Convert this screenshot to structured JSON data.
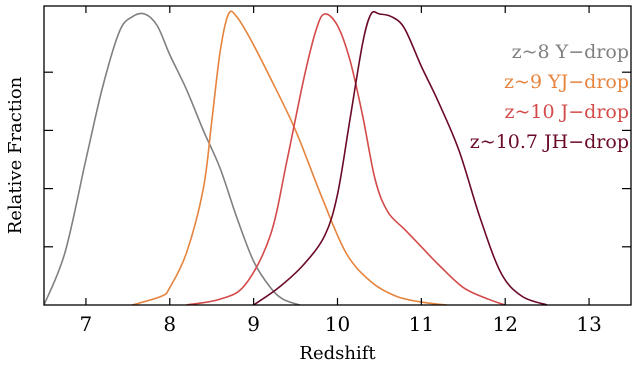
{
  "chart_data": {
    "type": "line",
    "xlabel": "Redshift",
    "ylabel": "Relative Fraction",
    "xlim": [
      6.5,
      13.5
    ],
    "ylim": [
      0,
      1.0
    ],
    "x_ticks": [
      7,
      8,
      9,
      10,
      11,
      12,
      13
    ],
    "x_tick_labels": [
      "7",
      "8",
      "9",
      "10",
      "11",
      "12",
      "13"
    ],
    "y_ticks": [
      0.2,
      0.4,
      0.6,
      0.8
    ],
    "y_tick_labels_shown": false,
    "grid": false,
    "legend_position": "top-right",
    "series": [
      {
        "name": "z~8 Y−drop",
        "color": "#808080",
        "x": [
          6.5,
          6.75,
          7.0,
          7.2,
          7.4,
          7.55,
          7.7,
          7.85,
          8.0,
          8.2,
          8.4,
          8.6,
          8.8,
          9.0,
          9.2,
          9.35,
          9.55
        ],
        "y": [
          0.0,
          0.18,
          0.5,
          0.75,
          0.94,
          0.99,
          1.0,
          0.96,
          0.86,
          0.74,
          0.6,
          0.47,
          0.3,
          0.15,
          0.06,
          0.02,
          0.0
        ]
      },
      {
        "name": "z~9 YJ−drop",
        "color": "#e6843e",
        "x": [
          7.55,
          7.9,
          8.0,
          8.2,
          8.4,
          8.5,
          8.6,
          8.7,
          8.8,
          8.95,
          9.2,
          9.5,
          9.8,
          10.1,
          10.4,
          10.7,
          11.0,
          11.3
        ],
        "y": [
          0.0,
          0.03,
          0.06,
          0.18,
          0.4,
          0.63,
          0.87,
          1.0,
          0.99,
          0.92,
          0.78,
          0.6,
          0.38,
          0.18,
          0.08,
          0.03,
          0.01,
          0.0
        ]
      },
      {
        "name": "z~10 J−drop",
        "color": "#d44a4a",
        "x": [
          8.2,
          8.6,
          8.9,
          9.2,
          9.4,
          9.6,
          9.75,
          9.85,
          10.0,
          10.15,
          10.3,
          10.45,
          10.6,
          10.8,
          11.0,
          11.2,
          11.5,
          11.8,
          12.0
        ],
        "y": [
          0.0,
          0.02,
          0.07,
          0.24,
          0.5,
          0.78,
          0.95,
          1.0,
          0.96,
          0.84,
          0.65,
          0.43,
          0.32,
          0.26,
          0.2,
          0.14,
          0.06,
          0.02,
          0.0
        ]
      },
      {
        "name": "z~10.7 JH−drop",
        "color": "#6b0a26",
        "x": [
          9.0,
          9.3,
          9.6,
          9.85,
          10.0,
          10.15,
          10.3,
          10.4,
          10.5,
          10.65,
          10.8,
          11.0,
          11.2,
          11.45,
          11.7,
          11.95,
          12.2,
          12.5
        ],
        "y": [
          0.0,
          0.06,
          0.14,
          0.24,
          0.38,
          0.64,
          0.9,
          1.0,
          1.0,
          0.99,
          0.95,
          0.82,
          0.7,
          0.53,
          0.3,
          0.11,
          0.03,
          0.0
        ]
      }
    ]
  }
}
